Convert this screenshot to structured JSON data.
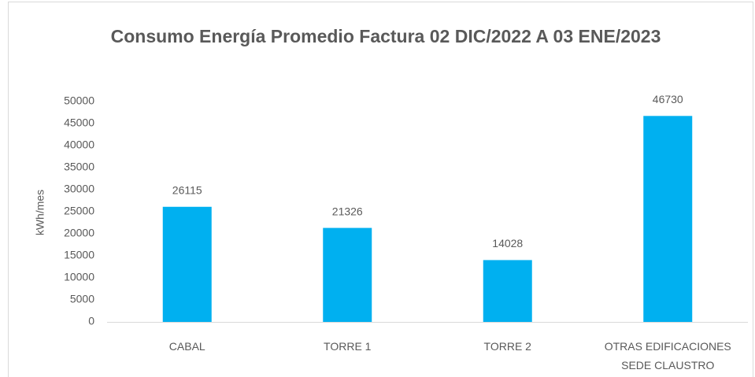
{
  "chart_data": {
    "type": "bar",
    "title": "Consumo Energía Promedio Factura 02 DIC/2022 A 03 ENE/2023",
    "ylabel": "kWh/mes",
    "categories": [
      "CABAL",
      "TORRE 1",
      "TORRE 2",
      "OTRAS EDIFICACIONES SEDE CLAUSTRO"
    ],
    "values": [
      26115,
      21326,
      14028,
      46730
    ],
    "color": "#00b0f0",
    "ylim": [
      0,
      50000
    ],
    "yticks": [
      0,
      5000,
      10000,
      15000,
      20000,
      25000,
      30000,
      35000,
      40000,
      45000,
      50000
    ],
    "grid": false
  }
}
